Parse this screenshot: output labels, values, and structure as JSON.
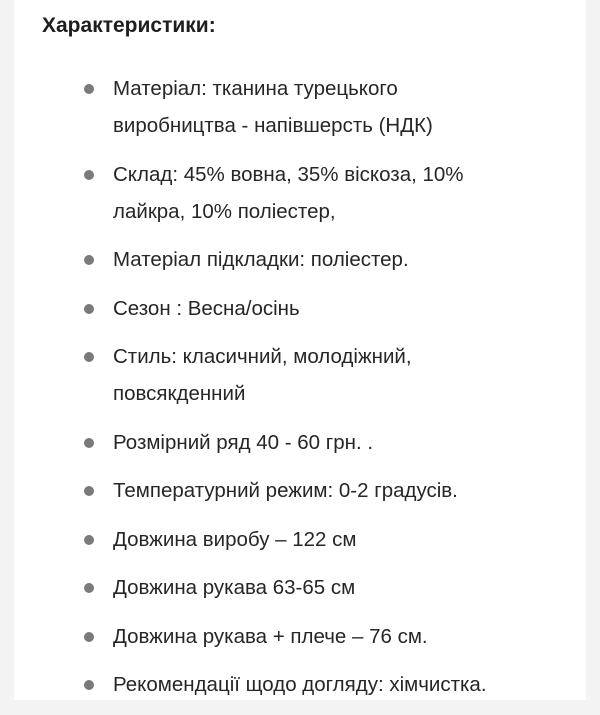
{
  "title": "Характеристики:",
  "items": [
    {
      "lines": [
        "Матеріал: тканина турецького",
        "виробництва - напівшерсть (НДК)"
      ]
    },
    {
      "lines": [
        "Склад: 45% вовна, 35% віскоза, 10%",
        "лайкра, 10% поліестер,"
      ]
    },
    {
      "lines": [
        "Матеріал підкладки: поліестер."
      ]
    },
    {
      "lines": [
        "Сезон : Весна/осінь"
      ]
    },
    {
      "lines": [
        "Стиль: класичний, молодіжний,",
        "повсякденний"
      ]
    },
    {
      "lines": [
        "Розмірний ряд 40 - 60 грн. ."
      ]
    },
    {
      "lines": [
        "Температурний режим: 0-2 градусів."
      ]
    },
    {
      "lines": [
        "Довжина виробу – 122 см"
      ]
    },
    {
      "lines": [
        "Довжина рукава 63-65 см"
      ]
    },
    {
      "lines": [
        "Довжина рукава + плече – 76 см."
      ]
    },
    {
      "lines": [
        "Рекомендації щодо догляду: хімчистка."
      ]
    }
  ]
}
